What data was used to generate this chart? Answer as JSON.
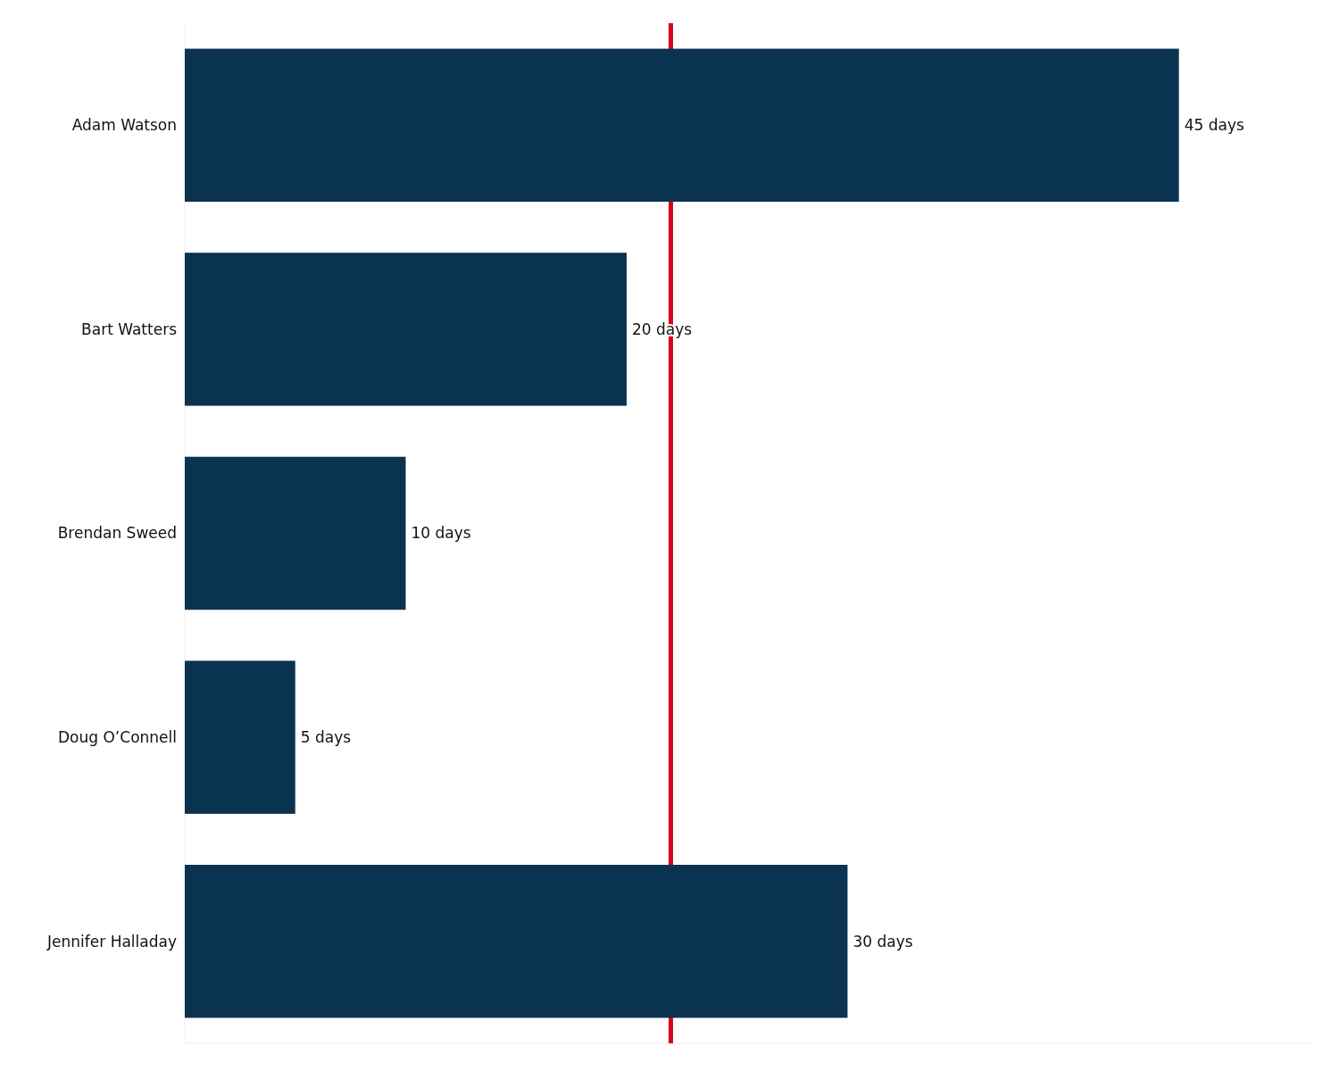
{
  "chart_data": {
    "type": "bar",
    "orientation": "horizontal",
    "categories": [
      "Adam Watson",
      "Bart Watters",
      "Brendan Sweed",
      "Doug O’Connell",
      "Jennifer Halladay"
    ],
    "values": [
      45,
      20,
      10,
      5,
      30
    ],
    "value_labels": [
      "45 days",
      "20 days",
      "10 days",
      "5 days",
      "30 days"
    ],
    "color": "#0a3251",
    "ref_lines": [
      {
        "axis": "x",
        "value": 22,
        "color": "#d9001b"
      }
    ]
  }
}
